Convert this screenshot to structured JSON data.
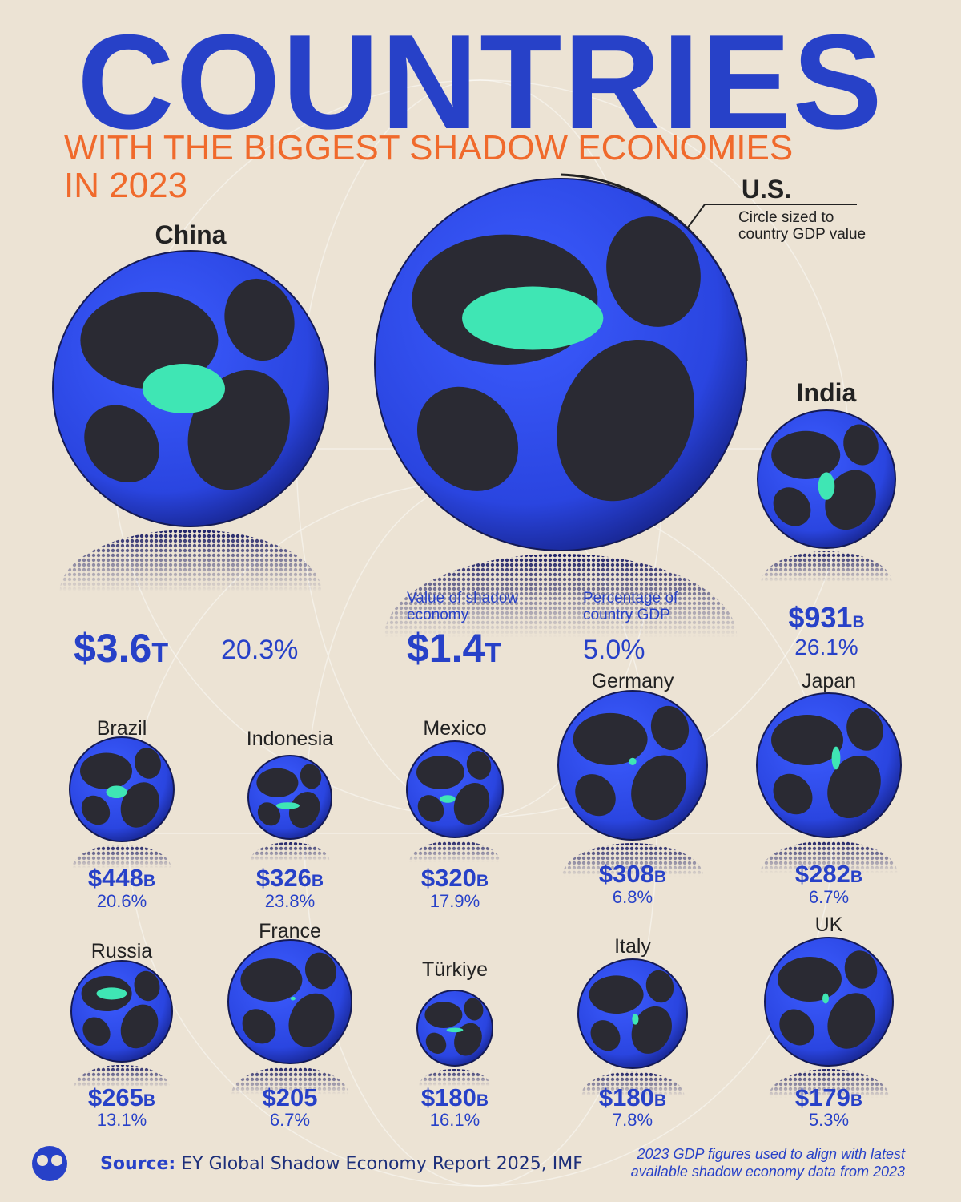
{
  "header": {
    "title": "COUNTRIES",
    "subtitle": "WITH THE BIGGEST SHADOW ECONOMIES",
    "subtitle_2": "IN 2023"
  },
  "legend": {
    "circle_note": "Circle sized to country GDP value",
    "value_note": "Value of shadow economy",
    "percent_note": "Percentage of country GDP"
  },
  "countries": [
    {
      "name": "China",
      "value": "$3.6",
      "unit": "T",
      "percent": "20.3%"
    },
    {
      "name": "U.S.",
      "value": "$1.4",
      "unit": "T",
      "percent": "5.0%"
    },
    {
      "name": "India",
      "value": "$931",
      "unit": "B",
      "percent": "26.1%"
    },
    {
      "name": "Brazil",
      "value": "$448",
      "unit": "B",
      "percent": "20.6%"
    },
    {
      "name": "Indonesia",
      "value": "$326",
      "unit": "B",
      "percent": "23.8%"
    },
    {
      "name": "Mexico",
      "value": "$320",
      "unit": "B",
      "percent": "17.9%"
    },
    {
      "name": "Germany",
      "value": "$308",
      "unit": "B",
      "percent": "6.8%"
    },
    {
      "name": "Japan",
      "value": "$282",
      "unit": "B",
      "percent": "6.7%"
    },
    {
      "name": "Russia",
      "value": "$265",
      "unit": "B",
      "percent": "13.1%"
    },
    {
      "name": "France",
      "value": "$205",
      "percent": "6.7%"
    },
    {
      "name": "Türkiye",
      "value": "$180",
      "unit": "B",
      "percent": "16.1%"
    },
    {
      "name": "Italy",
      "value": "$180",
      "unit": "B",
      "percent": "7.8%"
    },
    {
      "name": "UK",
      "value": "$179",
      "unit": "B",
      "percent": "5.3%"
    }
  ],
  "footer": {
    "source_label": "Source:",
    "source": "EY Global Shadow Economy Report 2025, IMF",
    "note": "2023 GDP figures used to align with latest available shadow economy data from 2023"
  }
}
